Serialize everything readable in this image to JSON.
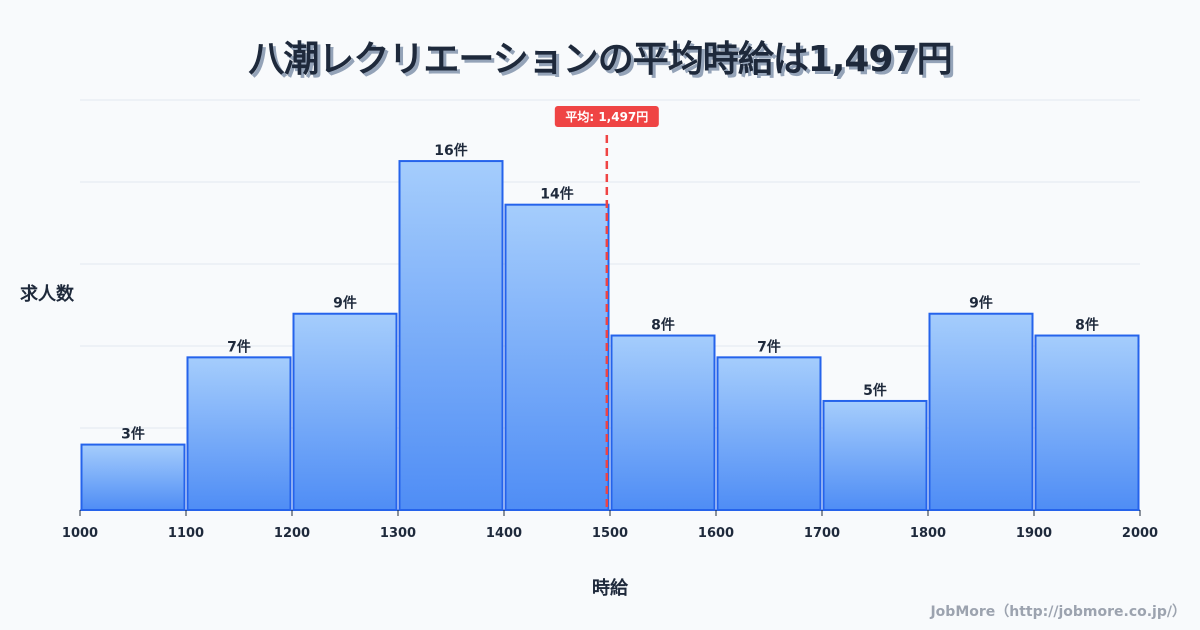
{
  "title": "八潮レクリエーションの平均時給は1,497円",
  "credit": "JobMore（http://jobmore.co.jp/）",
  "colors": {
    "background": "#f8fafc",
    "bar_top": "#a5cdfc",
    "bar_bottom": "#4f8df5",
    "bar_stroke": "#2563eb",
    "mean_line": "#ef4444",
    "grid": "#e2e8f0",
    "text": "#1e293b"
  },
  "chart_data": {
    "type": "bar",
    "subtype": "histogram",
    "title": "八潮レクリエーションの平均時給は1,497円",
    "xlabel": "時給",
    "ylabel": "求人数",
    "bin_edges": [
      1000,
      1100,
      1200,
      1300,
      1400,
      1500,
      1600,
      1700,
      1800,
      1900,
      2000
    ],
    "categories": [
      "1000-1100",
      "1100-1200",
      "1200-1300",
      "1300-1400",
      "1400-1500",
      "1500-1600",
      "1600-1700",
      "1700-1800",
      "1800-1900",
      "1900-2000"
    ],
    "values": [
      3,
      7,
      9,
      16,
      14,
      8,
      7,
      5,
      9,
      8
    ],
    "value_labels": [
      "3件",
      "7件",
      "9件",
      "16件",
      "14件",
      "8件",
      "7件",
      "5件",
      "9件",
      "8件"
    ],
    "x_tick_labels": [
      "1000",
      "1100",
      "1200",
      "1300",
      "1400",
      "1500",
      "1600",
      "1700",
      "1800",
      "1900",
      "2000"
    ],
    "xlim": [
      1000,
      2000
    ],
    "ylim": [
      0,
      18.8
    ],
    "grid": true,
    "grid_axis": "y",
    "legend": null,
    "annotations": [
      {
        "type": "vline",
        "x": 1497,
        "style": "dashed",
        "color": "#ef4444",
        "label": "平均: 1,497円"
      }
    ]
  }
}
